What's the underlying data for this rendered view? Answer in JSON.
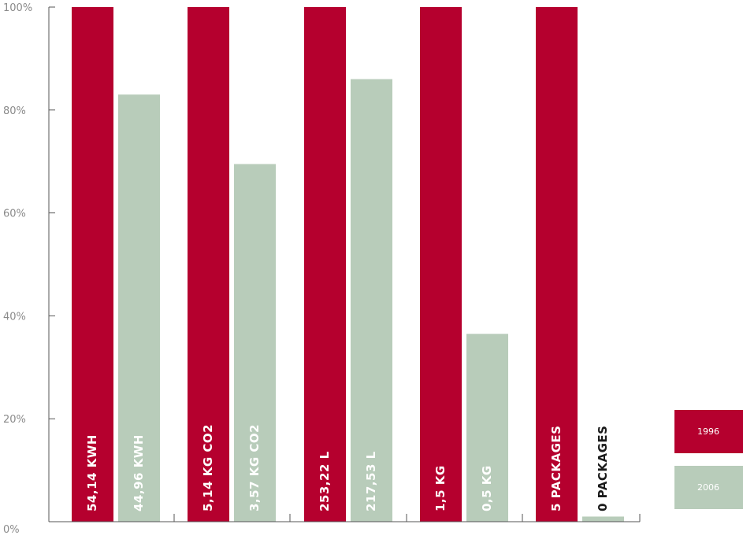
{
  "chart_data": {
    "type": "bar",
    "categories": [
      "",
      "",
      "",
      "",
      ""
    ],
    "series": [
      {
        "name": "1996",
        "color": "#b5002e",
        "values": [
          100,
          100,
          100,
          100,
          100
        ],
        "data_labels": [
          "54,14  KWH",
          "5,14 KG CO2",
          "253,22 L",
          "1,5 KG",
          "5 PACKAGES"
        ]
      },
      {
        "name": "2006",
        "color": "#b8ccba",
        "values": [
          83,
          69.5,
          86,
          36.5,
          1
        ],
        "data_labels": [
          "44,96 KWH",
          "3,57 KG CO2",
          "217,53 L",
          "0,5 KG",
          "0 PACKAGES"
        ]
      }
    ],
    "y_ticks": [
      "0%",
      "20%",
      "40%",
      "60%",
      "80%",
      "100%"
    ],
    "ylim": [
      0,
      100
    ],
    "grid": false,
    "legend_position": "right"
  }
}
